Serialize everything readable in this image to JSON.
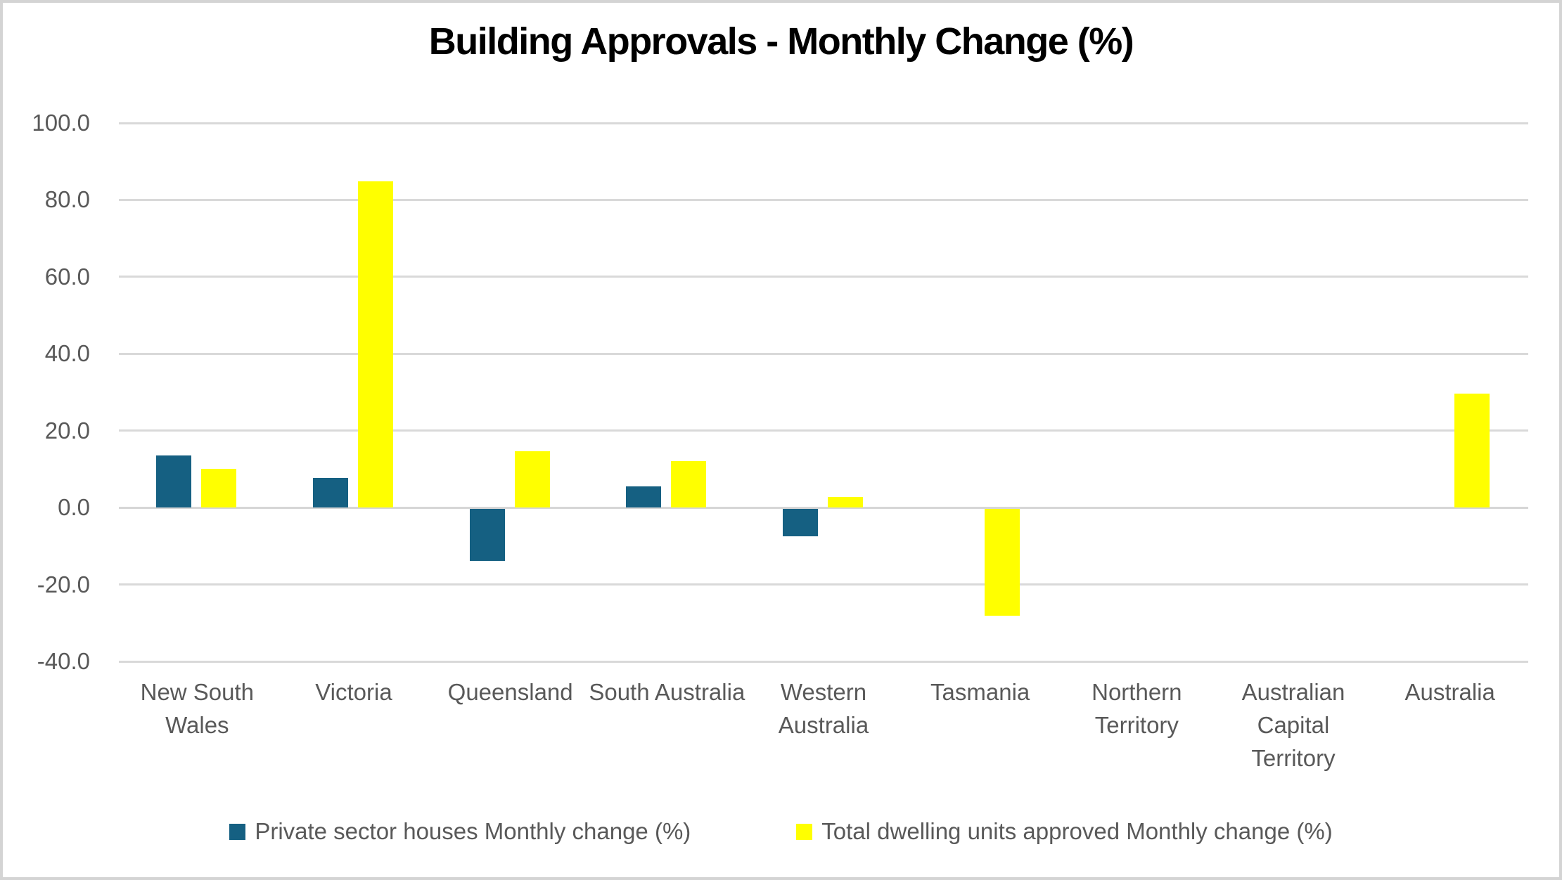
{
  "chart_data": {
    "type": "bar",
    "title": "Building Approvals - Monthly Change (%)",
    "categories": [
      "New South Wales",
      "Victoria",
      "Queensland",
      "South Australia",
      "Western Australia",
      "Tasmania",
      "Northern Territory",
      "Australian Capital Territory",
      "Australia"
    ],
    "series": [
      {
        "name": "Private sector houses Monthly change (%)",
        "color": "#156082",
        "values": [
          13.6,
          7.7,
          -13.6,
          5.6,
          -7.2,
          null,
          null,
          null,
          null
        ]
      },
      {
        "name": "Total dwelling units approved Monthly change (%)",
        "color": "#FFFF00",
        "values": [
          10.0,
          84.9,
          14.7,
          12.1,
          2.8,
          -27.9,
          null,
          null,
          29.7
        ]
      }
    ],
    "ylim": [
      -40,
      100
    ],
    "y_step": 20,
    "y_tick_labels": [
      "100.0",
      "80.0",
      "60.0",
      "40.0",
      "20.0",
      "0.0",
      "-20.0",
      "-40.0"
    ],
    "grid": true,
    "legend_position": "bottom",
    "xlabel": "",
    "ylabel": ""
  },
  "colors": {
    "gridline": "#d9d9d9",
    "axis_line": "#d6d6d6",
    "axis_text": "#595959",
    "title_text": "#000000",
    "frame": "#d4d4d4",
    "background": "#ffffff"
  }
}
